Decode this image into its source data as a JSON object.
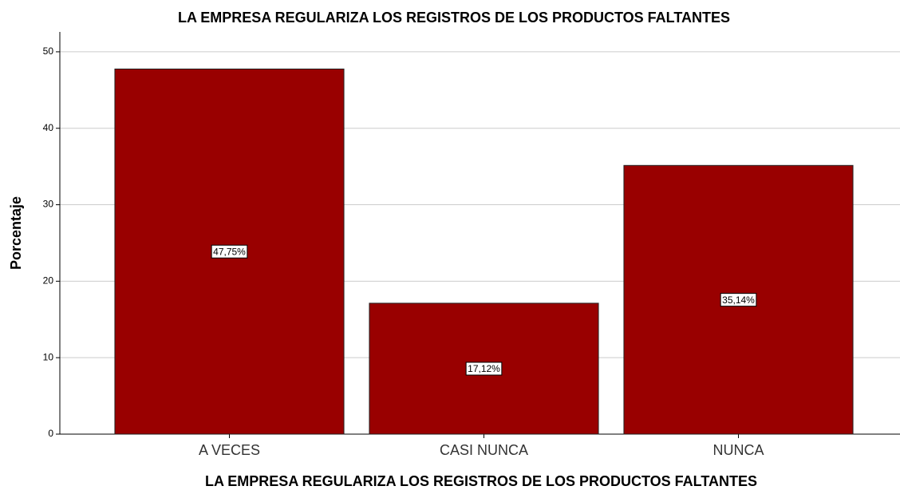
{
  "chart_data": {
    "type": "bar",
    "title": "LA EMPRESA REGULARIZA LOS REGISTROS DE LOS PRODUCTOS FALTANTES",
    "x_label": "LA EMPRESA REGULARIZA LOS REGISTROS DE LOS PRODUCTOS FALTANTES",
    "y_label": "Porcentaje",
    "categories": [
      "A VECES",
      "CASI NUNCA",
      "NUNCA"
    ],
    "values": [
      47.75,
      17.12,
      35.14
    ],
    "value_labels": [
      "47,75%",
      "17,12%",
      "35,14%"
    ],
    "color": "#990000",
    "ylim": [
      0,
      52.6
    ],
    "yticks": [
      0,
      10,
      20,
      30,
      40,
      50
    ],
    "grid": true
  }
}
